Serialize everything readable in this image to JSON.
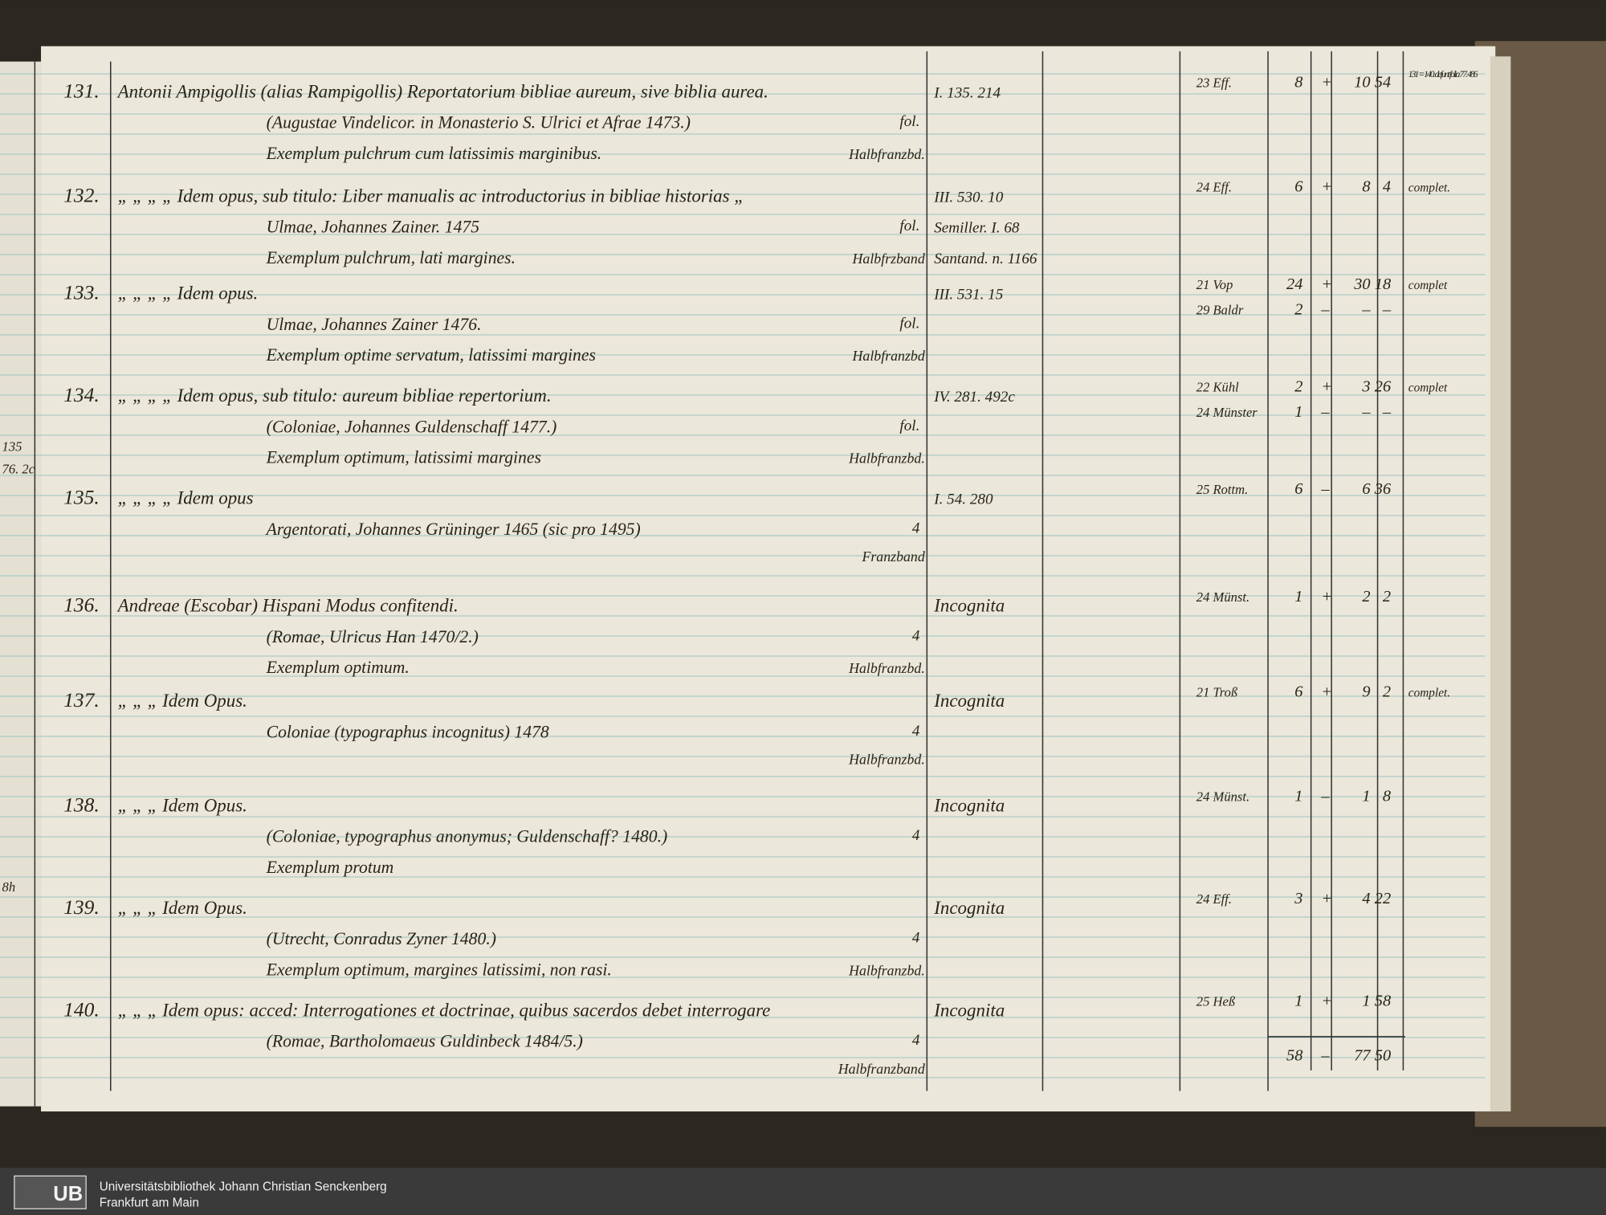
{
  "margin_notes": [
    "135",
    "76. 2c",
    "8h"
  ],
  "entries": [
    {
      "number": "131.",
      "lines": [
        "Antonii Ampigollis (alias Rampigollis) Reportatorium bibliae aureum, sive biblia aurea.",
        "(Augustae Vindelicor. in Monasterio S. Ulrici et Afrae 1473.)",
        "Exemplum pulchrum cum latissimis marginibus."
      ],
      "format": "fol.",
      "binding": "Halbfranzbd.",
      "refs": [
        "I. 135. 214"
      ],
      "sales": [
        [
          "23 Eff.",
          "8",
          "+",
          "10",
          "54"
        ]
      ],
      "note": "131 = 140. defunt folia 77. 486"
    },
    {
      "number": "132.",
      "lines": [
        "„ „ „ „ Idem opus, sub titulo: Liber manualis ac introductorius in bibliae historias „",
        "Ulmae, Johannes Zainer. 1475",
        "Exemplum pulchrum, lati margines."
      ],
      "format": "fol.",
      "binding": "Halbfrzband",
      "refs": [
        "III. 530. 10",
        "Semiller. I. 68",
        "Santand. n. 1166"
      ],
      "sales": [
        [
          "24 Eff.",
          "6",
          "+",
          "8",
          "4"
        ]
      ],
      "note": "complet."
    },
    {
      "number": "133.",
      "lines": [
        "„ „ „ „ Idem opus.",
        "Ulmae, Johannes Zainer 1476.",
        "Exemplum optime servatum, latissimi margines"
      ],
      "format": "fol.",
      "binding": "Halbfranzbd",
      "refs": [
        "III. 531. 15"
      ],
      "sales": [
        [
          "21 Vop",
          "24",
          "+",
          "30",
          "18"
        ],
        [
          "29 Baldr",
          "2",
          "–",
          "–",
          "–"
        ]
      ],
      "note": "complet"
    },
    {
      "number": "134.",
      "lines": [
        "„ „ „ „ Idem opus, sub titulo: aureum bibliae repertorium.",
        "(Coloniae, Johannes Guldenschaff 1477.)",
        "Exemplum optimum, latissimi margines"
      ],
      "format": "fol.",
      "binding": "Halbfranzbd.",
      "refs": [
        "IV. 281. 492c"
      ],
      "sales": [
        [
          "22 Kühl",
          "2",
          "+",
          "3",
          "26"
        ],
        [
          "24 Münster",
          "1",
          "–",
          "–",
          "–"
        ]
      ],
      "note": "complet"
    },
    {
      "number": "135.",
      "lines": [
        "„ „ „ „ Idem opus",
        "Argentorati, Johannes Grüninger 1465 (sic pro 1495)"
      ],
      "format": "4",
      "binding": "Franzband",
      "refs": [
        "I. 54. 280"
      ],
      "sales": [
        [
          "25 Rottm.",
          "6",
          "–",
          "6",
          "36"
        ]
      ]
    },
    {
      "number": "136.",
      "lines": [
        "Andreae (Escobar) Hispani Modus confitendi.",
        "(Romae, Ulricus Han 1470/2.)",
        "Exemplum optimum."
      ],
      "format": "4",
      "binding": "Halbfranzbd.",
      "refs": [
        "Incognita"
      ],
      "sales": [
        [
          "24 Münst.",
          "1",
          "+",
          "2",
          "2"
        ]
      ]
    },
    {
      "number": "137.",
      "lines": [
        "„ „ „ Idem Opus.",
        "Coloniae (typographus incognitus) 1478"
      ],
      "format": "4",
      "binding": "Halbfranzbd.",
      "refs": [
        "Incognita"
      ],
      "sales": [
        [
          "21 Troß",
          "6",
          "+",
          "9",
          "2"
        ]
      ],
      "note": "complet."
    },
    {
      "number": "138.",
      "lines": [
        "„ „ „ Idem Opus.",
        "(Coloniae, typographus anonymus; Guldenschaff? 1480.)",
        "Exemplum protum"
      ],
      "format": "4",
      "refs": [
        "Incognita"
      ],
      "sales": [
        [
          "24 Münst.",
          "1",
          "–",
          "1",
          "8"
        ]
      ]
    },
    {
      "number": "139.",
      "lines": [
        "„ „ „ Idem Opus.",
        "(Utrecht, Conradus Zyner 1480.)",
        "Exemplum optimum, margines latissimi, non rasi."
      ],
      "format": "4",
      "binding": "Halbfranzbd.",
      "refs": [
        "Incognita"
      ],
      "sales": [
        [
          "24 Eff.",
          "3",
          "+",
          "4",
          "22"
        ]
      ]
    },
    {
      "number": "140.",
      "lines": [
        "„ „ „ Idem opus: acced: Interrogationes et doctrinae, quibus sacerdos debet interrogare",
        "(Romae, Bartholomaeus Guldinbeck 1484/5.)"
      ],
      "format": "4",
      "binding": "Halbfranzband",
      "refs": [
        "Incognita"
      ],
      "sales": [
        [
          "25 Heß",
          "1",
          "+",
          "1",
          "58"
        ]
      ]
    }
  ],
  "totals": [
    "58",
    "–",
    "77",
    "50"
  ],
  "footer": {
    "logo": "UB",
    "line1": "Universitätsbibliothek Johann Christian Senckenberg",
    "line2": "Frankfurt am Main"
  }
}
